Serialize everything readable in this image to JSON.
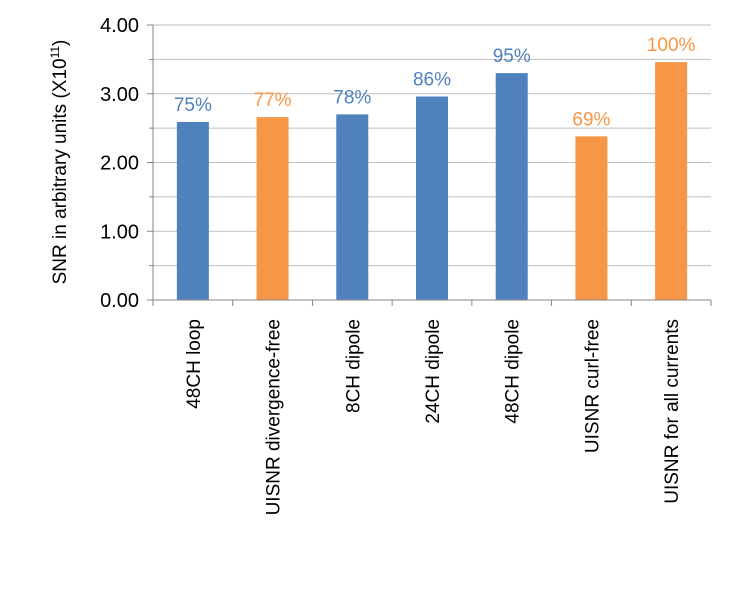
{
  "chart_data": {
    "type": "bar",
    "title": "",
    "xlabel": "",
    "ylabel": {
      "prefix": "SNR in arbitrary units (X10",
      "superscript": "11",
      "suffix": ")"
    },
    "ylim": [
      0,
      4
    ],
    "yticks": [
      "0.00",
      "1.00",
      "2.00",
      "3.00",
      "4.00"
    ],
    "grid": true,
    "legend": "none",
    "categories": [
      "48CH loop",
      "UISNR divergence-free",
      "8CH dipole",
      "24CH dipole",
      "48CH dipole",
      "UISNR curl-free",
      "UISNR for all currents"
    ],
    "values": [
      2.59,
      2.66,
      2.7,
      2.96,
      3.3,
      2.38,
      3.46
    ],
    "data_labels": [
      "75%",
      "77%",
      "78%",
      "86%",
      "95%",
      "69%",
      "100%"
    ],
    "bar_colors": [
      "#4f81bd",
      "#f79646",
      "#4f81bd",
      "#4f81bd",
      "#4f81bd",
      "#f79646",
      "#f79646"
    ]
  }
}
